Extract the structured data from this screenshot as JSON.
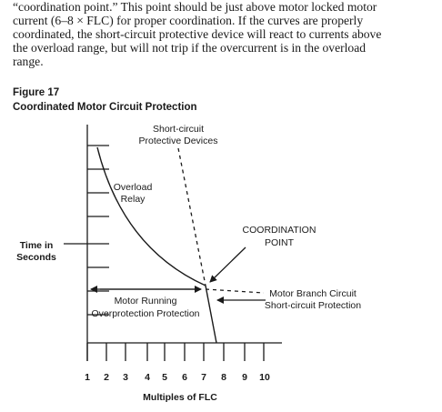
{
  "paragraph": {
    "lines": [
      "“coordination point.”  This point should be just above motor locked motor",
      "current (6–8 × FLC) for proper coordination.  If the curves are properly",
      "coordinated, the short-circuit protective device will react to currents above",
      "the overload range, but will not trip if the overcurrent is in the overload",
      "range."
    ]
  },
  "figure": {
    "label": "Figure 17",
    "title": "Coordinated Motor Circuit Protection"
  },
  "diagram": {
    "y_axis_label_line1": "Time in",
    "y_axis_label_line2": "Seconds",
    "x_axis_label": "Multiples of FLC",
    "x_ticks": [
      "1",
      "2",
      "3",
      "4",
      "5",
      "6",
      "7",
      "8",
      "9",
      "10"
    ],
    "short_circuit_label_line1": "Short-circuit",
    "short_circuit_label_line2": "Protective Devices",
    "overload_label_line1": "Overload",
    "overload_label_line2": "Relay",
    "coordination_label_line1": "COORDINATION",
    "coordination_label_line2": "POINT",
    "branch_label_line1": "Motor Branch Circuit",
    "branch_label_line2": "Short-circuit Protection",
    "running_label_line1": "Motor Running",
    "running_label_line2": "Overprotection Protection"
  }
}
